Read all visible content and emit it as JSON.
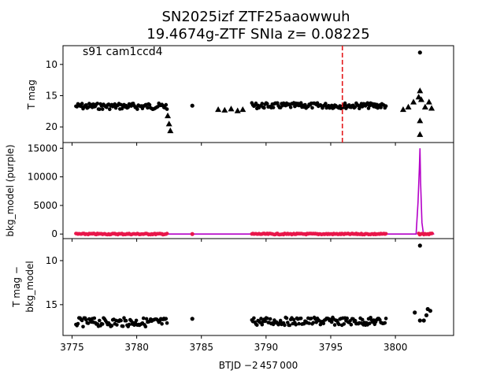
{
  "chart_data": {
    "type": "scatter",
    "title_line1": "SN2025izf  ZTF25aaowwuh",
    "title_line2": "19.4674g-ZTF SNIa z= 0.08225",
    "xlabel": "BTJD −2 457 000",
    "xlim": [
      3774.3,
      3804.5
    ],
    "xticks": [
      "3775",
      "3780",
      "3785",
      "3790",
      "3795",
      "3800"
    ],
    "panels": [
      {
        "id": "top",
        "ylabel": "T mag",
        "ylim_inverted": [
          22.5,
          7.0
        ],
        "yticks": [
          "10",
          "15",
          "20"
        ],
        "annotation": "s91 cam1ccd4",
        "vline_x": 3795.9,
        "vline_color": "#e41a1c",
        "series": [
          {
            "marker": "dot",
            "color": "#000000",
            "segments": [
              {
                "x": [
                  3775.3,
                  3782.4
                ],
                "y": 16.7,
                "spread": 0.5
              },
              {
                "x": [
                  3788.9,
                  3799.3
                ],
                "y": 16.6,
                "spread": 0.45
              }
            ],
            "points": [
              {
                "x": 3784.3,
                "y": 16.6
              },
              {
                "x": 3801.9,
                "y": 8.1
              }
            ]
          },
          {
            "marker": "triangle",
            "color": "#000000",
            "points": [
              {
                "x": 3786.3,
                "y": 17.2
              },
              {
                "x": 3786.8,
                "y": 17.3
              },
              {
                "x": 3787.3,
                "y": 17.1
              },
              {
                "x": 3787.8,
                "y": 17.4
              },
              {
                "x": 3788.2,
                "y": 17.2
              },
              {
                "x": 3782.4,
                "y": 18.2
              },
              {
                "x": 3782.5,
                "y": 19.5
              },
              {
                "x": 3782.6,
                "y": 20.6
              },
              {
                "x": 3800.6,
                "y": 17.2
              },
              {
                "x": 3801.0,
                "y": 16.8
              },
              {
                "x": 3801.4,
                "y": 16.0
              },
              {
                "x": 3801.8,
                "y": 15.2
              },
              {
                "x": 3801.9,
                "y": 14.2
              },
              {
                "x": 3802.0,
                "y": 15.6
              },
              {
                "x": 3801.9,
                "y": 19.0
              },
              {
                "x": 3801.9,
                "y": 21.2
              },
              {
                "x": 3802.3,
                "y": 16.8
              },
              {
                "x": 3802.6,
                "y": 16.0
              },
              {
                "x": 3802.8,
                "y": 17.0
              }
            ]
          }
        ]
      },
      {
        "id": "middle",
        "ylabel": "bkg_model (purple)",
        "ylim": [
          -800,
          16000
        ],
        "yticks": [
          "0",
          "5000",
          "10000",
          "15000"
        ],
        "series": [
          {
            "name": "bkg_model",
            "color": "#b400c8",
            "x": [
              3775.3,
              3801.6,
              3801.75,
              3801.85,
              3801.9,
              3801.95,
              3802.05,
              3802.15,
              3802.3,
              3803.0
            ],
            "y": [
              0,
              0,
              5500,
              11500,
              15000,
              9000,
              2000,
              300,
              0,
              0
            ]
          },
          {
            "marker": "dot",
            "color": "#e8174a",
            "segments": [
              {
                "x": [
                  3775.3,
                  3782.4
                ],
                "y": 0
              },
              {
                "x": [
                  3788.9,
                  3799.3
                ],
                "y": 0
              },
              {
                "x": [
                  3801.8,
                  3802.9
                ],
                "y": 0
              }
            ],
            "points": [
              {
                "x": 3784.3,
                "y": 0
              }
            ]
          }
        ]
      },
      {
        "id": "bottom",
        "ylabel": "T mag −",
        "ylabel2": "bkg_model",
        "ylim_inverted": [
          18.5,
          7.5
        ],
        "yticks": [
          "10",
          "15"
        ],
        "series": [
          {
            "marker": "dot",
            "color": "#000000",
            "segments": [
              {
                "x": [
                  3775.3,
                  3782.4
                ],
                "y": 17.0,
                "spread": 0.5
              },
              {
                "x": [
                  3788.9,
                  3799.3
                ],
                "y": 16.9,
                "spread": 0.45
              }
            ],
            "points": [
              {
                "x": 3784.3,
                "y": 16.6
              },
              {
                "x": 3801.9,
                "y": 8.3
              },
              {
                "x": 3801.5,
                "y": 15.9
              },
              {
                "x": 3801.9,
                "y": 16.8
              },
              {
                "x": 3802.2,
                "y": 16.8
              },
              {
                "x": 3802.5,
                "y": 15.5
              },
              {
                "x": 3802.7,
                "y": 15.7
              },
              {
                "x": 3802.4,
                "y": 16.2
              }
            ]
          }
        ]
      }
    ]
  }
}
